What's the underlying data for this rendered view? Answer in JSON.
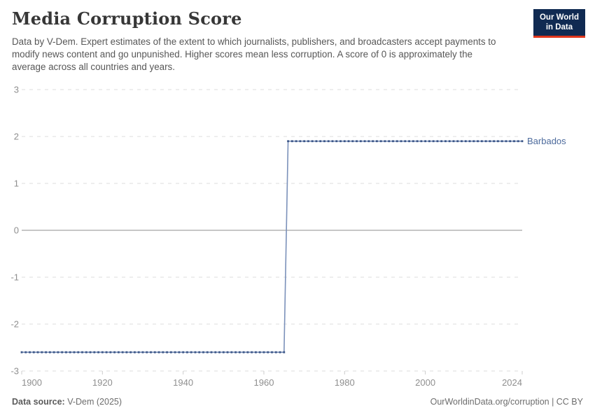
{
  "header": {
    "title": "Media Corruption Score",
    "subtitle": "Data by V-Dem. Expert estimates of the extent to which journalists, publishers, and broadcasters accept payments to modify news content and go unpunished. Higher scores mean less corruption. A score of 0 is approximately the average across all countries and years.",
    "logo": {
      "line1": "Our World",
      "line2": "in Data",
      "bg_color": "#102a52",
      "accent_color": "#e0361c",
      "text_color": "#ffffff"
    }
  },
  "chart_data": {
    "type": "line",
    "title": "Media Corruption Score",
    "entity": "Barbados",
    "series": [
      {
        "name": "Barbados",
        "label_color": "#4C6A9C",
        "line_color": "#7b91ba",
        "marker_color": "#3d5788",
        "step_segments": [
          {
            "from_year": 1900,
            "to_year": 1965,
            "value": -2.6
          },
          {
            "from_year": 1966,
            "to_year": 2024,
            "value": 1.9
          }
        ]
      }
    ],
    "x_ticks": [
      1900,
      1920,
      1940,
      1960,
      1980,
      2000,
      2024
    ],
    "y_ticks": [
      3,
      2,
      1,
      0,
      -1,
      -2,
      -3
    ],
    "xlim": [
      1900,
      2024
    ],
    "ylim": [
      -3,
      3
    ],
    "xlabel": "",
    "ylabel": "",
    "grid": "horizontal dashed gridlines, solid zero line",
    "legend_position": "label at end of line",
    "grid_color": "#dcdcdc",
    "zero_line_color": "#b4b4b4",
    "tick_label_color": "#8f8f8f"
  },
  "footer": {
    "source_label": "Data source:",
    "source_value": " V-Dem (2025)",
    "credit": "OurWorldinData.org/corruption | CC BY"
  }
}
